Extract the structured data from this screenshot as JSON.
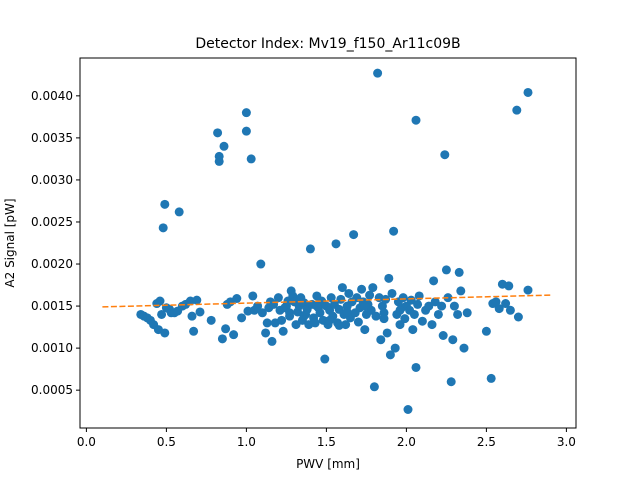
{
  "chart_data": {
    "type": "scatter",
    "title": "Detector Index: Mv19_f150_Ar11c09B",
    "xlabel": "PWV [mm]",
    "ylabel": "A2 Signal [pW]",
    "xlim": [
      -0.04,
      3.06
    ],
    "ylim": [
      5e-05,
      0.00445
    ],
    "xticks": [
      0.0,
      0.5,
      1.0,
      1.5,
      2.0,
      2.5,
      3.0
    ],
    "xtick_labels": [
      "0.0",
      "0.5",
      "1.0",
      "1.5",
      "2.0",
      "2.5",
      "3.0"
    ],
    "yticks": [
      0.0005,
      0.001,
      0.0015,
      0.002,
      0.0025,
      0.003,
      0.0035,
      0.004
    ],
    "ytick_labels": [
      "0.0005",
      "0.0010",
      "0.0015",
      "0.0020",
      "0.0025",
      "0.0030",
      "0.0035",
      "0.0040"
    ],
    "grid": false,
    "series": [
      {
        "name": "data",
        "style": "markers",
        "color": "#1f77b4",
        "points": [
          [
            0.34,
            0.0014
          ],
          [
            0.36,
            0.00138
          ],
          [
            0.38,
            0.00136
          ],
          [
            0.4,
            0.00133
          ],
          [
            0.42,
            0.00128
          ],
          [
            0.44,
            0.00153
          ],
          [
            0.45,
            0.00122
          ],
          [
            0.46,
            0.00156
          ],
          [
            0.47,
            0.0014
          ],
          [
            0.48,
            0.00243
          ],
          [
            0.49,
            0.00271
          ],
          [
            0.49,
            0.00118
          ],
          [
            0.5,
            0.00148
          ],
          [
            0.52,
            0.00146
          ],
          [
            0.53,
            0.00142
          ],
          [
            0.55,
            0.00142
          ],
          [
            0.57,
            0.00144
          ],
          [
            0.58,
            0.00262
          ],
          [
            0.6,
            0.0015
          ],
          [
            0.62,
            0.00152
          ],
          [
            0.65,
            0.00156
          ],
          [
            0.66,
            0.00138
          ],
          [
            0.67,
            0.0012
          ],
          [
            0.69,
            0.00157
          ],
          [
            0.71,
            0.00143
          ],
          [
            0.78,
            0.00133
          ],
          [
            0.82,
            0.00356
          ],
          [
            0.83,
            0.00328
          ],
          [
            0.83,
            0.00322
          ],
          [
            0.85,
            0.00111
          ],
          [
            0.86,
            0.0034
          ],
          [
            0.87,
            0.00123
          ],
          [
            0.88,
            0.00152
          ],
          [
            0.9,
            0.00155
          ],
          [
            0.92,
            0.00116
          ],
          [
            0.94,
            0.00159
          ],
          [
            0.97,
            0.00136
          ],
          [
            1.0,
            0.0038
          ],
          [
            1.0,
            0.00358
          ],
          [
            1.01,
            0.00144
          ],
          [
            1.03,
            0.00325
          ],
          [
            1.04,
            0.00162
          ],
          [
            1.05,
            0.00145
          ],
          [
            1.07,
            0.0015
          ],
          [
            1.09,
            0.002
          ],
          [
            1.1,
            0.00142
          ],
          [
            1.12,
            0.00118
          ],
          [
            1.13,
            0.0013
          ],
          [
            1.14,
            0.00148
          ],
          [
            1.15,
            0.00155
          ],
          [
            1.16,
            0.00108
          ],
          [
            1.17,
            0.00152
          ],
          [
            1.18,
            0.0013
          ],
          [
            1.2,
            0.0016
          ],
          [
            1.21,
            0.00145
          ],
          [
            1.22,
            0.00133
          ],
          [
            1.23,
            0.0012
          ],
          [
            1.24,
            0.00148
          ],
          [
            1.25,
            0.0015
          ],
          [
            1.26,
            0.00156
          ],
          [
            1.27,
            0.00142
          ],
          [
            1.28,
            0.00168
          ],
          [
            1.29,
            0.00162
          ],
          [
            1.3,
            0.00155
          ],
          [
            1.31,
            0.00128
          ],
          [
            1.32,
            0.00143
          ],
          [
            1.33,
            0.0015
          ],
          [
            1.34,
            0.0016
          ],
          [
            1.35,
            0.00133
          ],
          [
            1.36,
            0.00154
          ],
          [
            1.37,
            0.0014
          ],
          [
            1.38,
            0.00146
          ],
          [
            1.39,
            0.00128
          ],
          [
            1.4,
            0.00218
          ],
          [
            1.41,
            0.00152
          ],
          [
            1.42,
            0.00136
          ],
          [
            1.43,
            0.0013
          ],
          [
            1.44,
            0.00162
          ],
          [
            1.45,
            0.00148
          ],
          [
            1.46,
            0.00142
          ],
          [
            1.47,
            0.00156
          ],
          [
            1.48,
            0.00133
          ],
          [
            1.49,
            0.00087
          ],
          [
            1.5,
            0.0015
          ],
          [
            1.51,
            0.00128
          ],
          [
            1.52,
            0.00145
          ],
          [
            1.53,
            0.0016
          ],
          [
            1.54,
            0.00138
          ],
          [
            1.55,
            0.00152
          ],
          [
            1.56,
            0.00224
          ],
          [
            1.57,
            0.0013
          ],
          [
            1.58,
            0.00146
          ],
          [
            1.59,
            0.00158
          ],
          [
            1.6,
            0.00172
          ],
          [
            1.61,
            0.0014
          ],
          [
            1.62,
            0.00128
          ],
          [
            1.63,
            0.0015
          ],
          [
            1.64,
            0.00165
          ],
          [
            1.65,
            0.00136
          ],
          [
            1.66,
            0.00155
          ],
          [
            1.67,
            0.00235
          ],
          [
            1.68,
            0.00142
          ],
          [
            1.69,
            0.0016
          ],
          [
            1.7,
            0.00131
          ],
          [
            1.71,
            0.00148
          ],
          [
            1.72,
            0.0017
          ],
          [
            1.73,
            0.00155
          ],
          [
            1.74,
            0.00122
          ],
          [
            1.75,
            0.0014
          ],
          [
            1.76,
            0.00152
          ],
          [
            1.77,
            0.00163
          ],
          [
            1.78,
            0.00145
          ],
          [
            1.79,
            0.00172
          ],
          [
            1.8,
            0.00054
          ],
          [
            1.81,
            0.00138
          ],
          [
            1.82,
            0.00427
          ],
          [
            1.83,
            0.0016
          ],
          [
            1.84,
            0.0011
          ],
          [
            1.85,
            0.0015
          ],
          [
            1.86,
            0.00142
          ],
          [
            1.87,
            0.00158
          ],
          [
            1.88,
            0.00118
          ],
          [
            1.89,
            0.00183
          ],
          [
            1.9,
            0.00092
          ],
          [
            1.91,
            0.00165
          ],
          [
            1.92,
            0.00239
          ],
          [
            1.93,
            0.001
          ],
          [
            1.94,
            0.0014
          ],
          [
            1.95,
            0.00155
          ],
          [
            1.96,
            0.00128
          ],
          [
            1.97,
            0.00148
          ],
          [
            1.98,
            0.0016
          ],
          [
            1.99,
            0.00135
          ],
          [
            2.0,
            0.0015
          ],
          [
            2.01,
            0.00027
          ],
          [
            2.02,
            0.00145
          ],
          [
            2.03,
            0.00157
          ],
          [
            2.04,
            0.00122
          ],
          [
            2.05,
            0.0014
          ],
          [
            2.06,
            0.00371
          ],
          [
            2.06,
            0.00077
          ],
          [
            2.07,
            0.00152
          ],
          [
            2.08,
            0.00162
          ],
          [
            2.1,
            0.00132
          ],
          [
            2.12,
            0.00145
          ],
          [
            2.14,
            0.0015
          ],
          [
            2.16,
            0.00128
          ],
          [
            2.17,
            0.0018
          ],
          [
            2.18,
            0.00155
          ],
          [
            2.2,
            0.0014
          ],
          [
            2.22,
            0.0015
          ],
          [
            2.23,
            0.00115
          ],
          [
            2.24,
            0.0033
          ],
          [
            2.25,
            0.00193
          ],
          [
            2.26,
            0.0016
          ],
          [
            2.28,
            0.0006
          ],
          [
            2.29,
            0.0011
          ],
          [
            2.3,
            0.0015
          ],
          [
            2.32,
            0.0014
          ],
          [
            2.33,
            0.0019
          ],
          [
            2.34,
            0.00168
          ],
          [
            2.36,
            0.001
          ],
          [
            2.38,
            0.00142
          ],
          [
            2.5,
            0.0012
          ],
          [
            2.53,
            0.00064
          ],
          [
            2.54,
            0.00153
          ],
          [
            2.56,
            0.00155
          ],
          [
            2.58,
            0.00147
          ],
          [
            2.6,
            0.00176
          ],
          [
            2.62,
            0.00153
          ],
          [
            2.64,
            0.00174
          ],
          [
            2.65,
            0.00145
          ],
          [
            2.69,
            0.00383
          ],
          [
            2.7,
            0.00137
          ],
          [
            2.76,
            0.00404
          ],
          [
            2.76,
            0.00169
          ],
          [
            1.36,
            0.00138
          ],
          [
            1.52,
            0.00133
          ],
          [
            1.63,
            0.00143
          ],
          [
            1.74,
            0.0015
          ],
          [
            1.86,
            0.00135
          ],
          [
            1.96,
            0.00145
          ],
          [
            1.44,
            0.0015
          ],
          [
            1.58,
            0.00127
          ],
          [
            1.27,
            0.00138
          ]
        ]
      },
      {
        "name": "fit",
        "style": "dashed-line",
        "color": "#ff7f0e",
        "points": [
          [
            0.1,
            0.00149
          ],
          [
            2.9,
            0.00163
          ]
        ]
      }
    ]
  }
}
